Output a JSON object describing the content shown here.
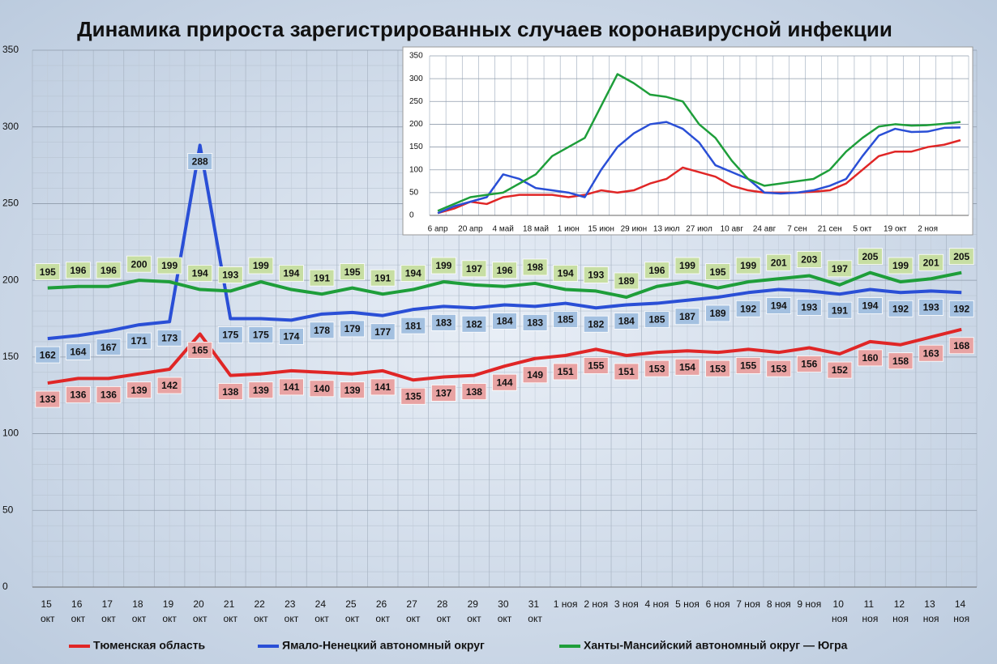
{
  "chart_data": [
    {
      "type": "line",
      "title": "Динамика прироста зарегистрированных случаев коронавирусной инфекции",
      "categories": [
        "15 окт",
        "16 окт",
        "17 окт",
        "18 окт",
        "19 окт",
        "20 окт",
        "21 окт",
        "22 окт",
        "23 окт",
        "24 окт",
        "25 окт",
        "26 окт",
        "27 окт",
        "28 окт",
        "29 окт",
        "30 окт",
        "31 окт",
        "1 ноя",
        "2 ноя",
        "3 ноя",
        "4 ноя",
        "5 ноя",
        "6 ноя",
        "7 ноя",
        "8 ноя",
        "9 ноя",
        "10 ноя",
        "11 ноя",
        "12 ноя",
        "13 ноя",
        "14 ноя"
      ],
      "series": [
        {
          "name": "Тюменская область",
          "color": "#e02626",
          "label_color": "#e8a3a3",
          "values": [
            133,
            136,
            136,
            139,
            142,
            165,
            138,
            139,
            141,
            140,
            139,
            141,
            135,
            137,
            138,
            144,
            149,
            151,
            155,
            151,
            153,
            154,
            153,
            155,
            153,
            156,
            152,
            160,
            158,
            163,
            168
          ]
        },
        {
          "name": "Ямало-Ненецкий автономный округ",
          "color": "#2a4fd6",
          "label_color": "#a3c0e0",
          "values": [
            162,
            164,
            167,
            171,
            173,
            288,
            175,
            175,
            174,
            178,
            179,
            177,
            181,
            183,
            182,
            184,
            183,
            185,
            182,
            184,
            185,
            187,
            189,
            192,
            194,
            193,
            191,
            194,
            192,
            193,
            192
          ]
        },
        {
          "name": "Ханты-Мансийский автономный округ — Югра",
          "color": "#1e9e3a",
          "label_color": "#c7dea3",
          "values": [
            195,
            196,
            196,
            200,
            199,
            194,
            193,
            199,
            194,
            191,
            195,
            191,
            194,
            199,
            197,
            196,
            198,
            194,
            193,
            189,
            196,
            199,
            195,
            199,
            201,
            203,
            197,
            205,
            199,
            201,
            205
          ]
        }
      ],
      "ylim": [
        0,
        350
      ],
      "yticks": [
        0,
        50,
        100,
        150,
        200,
        250,
        300,
        350
      ],
      "grid": true,
      "data_labels": true
    },
    {
      "type": "line",
      "categories": [
        "6 апр",
        null,
        "20 апр",
        null,
        "4 май",
        null,
        "18 май",
        null,
        "1 июн",
        null,
        "15 июн",
        null,
        "29 июн",
        null,
        "13 июл",
        null,
        "27 июл",
        null,
        "10 авг",
        null,
        "24 авг",
        null,
        "7 сен",
        null,
        "21 сен",
        null,
        "5 окт",
        null,
        "19 окт",
        null,
        "2 ноя",
        null,
        null
      ],
      "series": [
        {
          "name": "Тюменская область",
          "color": "#e02626",
          "values": [
            5,
            15,
            30,
            25,
            40,
            45,
            45,
            45,
            40,
            45,
            55,
            50,
            55,
            70,
            80,
            105,
            95,
            85,
            65,
            55,
            50,
            50,
            50,
            52,
            55,
            70,
            100,
            130,
            140,
            140,
            150,
            155,
            165
          ]
        },
        {
          "name": "Ямало-Ненецкий автономный округ",
          "color": "#2a4fd6",
          "values": [
            5,
            20,
            30,
            40,
            90,
            80,
            60,
            55,
            50,
            40,
            100,
            150,
            180,
            200,
            205,
            190,
            160,
            110,
            95,
            80,
            50,
            48,
            50,
            55,
            65,
            80,
            130,
            175,
            190,
            183,
            184,
            192,
            193
          ]
        },
        {
          "name": "Ханты-Мансийский автономный округ — Югра",
          "color": "#1e9e3a",
          "values": [
            10,
            25,
            40,
            45,
            50,
            70,
            90,
            130,
            150,
            170,
            240,
            310,
            290,
            265,
            260,
            250,
            200,
            170,
            120,
            80,
            65,
            70,
            75,
            80,
            100,
            140,
            170,
            195,
            200,
            197,
            198,
            201,
            205
          ]
        }
      ],
      "ylim": [
        0,
        350
      ],
      "yticks": [
        0,
        50,
        100,
        150,
        200,
        250,
        300,
        350
      ],
      "grid": true,
      "data_labels": false
    }
  ]
}
